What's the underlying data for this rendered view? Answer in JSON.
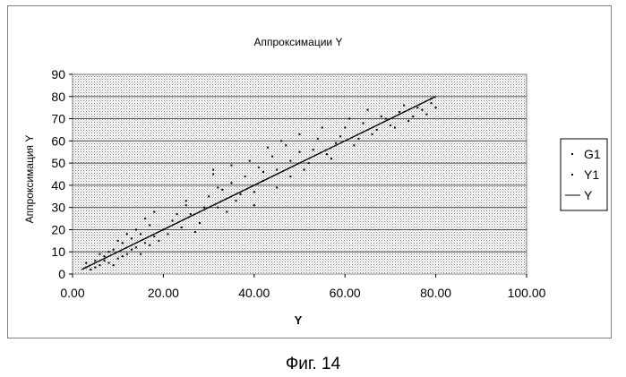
{
  "figure_caption": "Фиг. 14",
  "chart_data": {
    "type": "scatter",
    "title": "Аппроксимации Y",
    "xlabel": "Y",
    "ylabel": "Аппроксимация Y",
    "xlim": [
      0,
      100
    ],
    "ylim": [
      0,
      90
    ],
    "x_ticks": [
      "0.00",
      "20.00",
      "40.00",
      "60.00",
      "80.00",
      "100.00"
    ],
    "y_ticks": [
      "0",
      "10",
      "20",
      "30",
      "40",
      "50",
      "60",
      "70",
      "80",
      "90"
    ],
    "grid": true,
    "legend_position": "right",
    "series": [
      {
        "name": "G1",
        "kind": "points",
        "points": [
          [
            3,
            3
          ],
          [
            4,
            2
          ],
          [
            5,
            6
          ],
          [
            6,
            4
          ],
          [
            7,
            8
          ],
          [
            8,
            5
          ],
          [
            9,
            11
          ],
          [
            10,
            7
          ],
          [
            11,
            14
          ],
          [
            12,
            9
          ],
          [
            13,
            16
          ],
          [
            14,
            12
          ],
          [
            15,
            18
          ],
          [
            16,
            14
          ],
          [
            17,
            22
          ],
          [
            18,
            17
          ],
          [
            20,
            20
          ],
          [
            22,
            24
          ],
          [
            24,
            21
          ],
          [
            25,
            31
          ],
          [
            26,
            27
          ],
          [
            28,
            23
          ],
          [
            30,
            35
          ],
          [
            31,
            45
          ],
          [
            32,
            30
          ],
          [
            33,
            38
          ],
          [
            35,
            41
          ],
          [
            36,
            33
          ],
          [
            38,
            44
          ],
          [
            40,
            37
          ],
          [
            41,
            48
          ],
          [
            42,
            42
          ],
          [
            44,
            53
          ],
          [
            45,
            47
          ],
          [
            47,
            58
          ],
          [
            48,
            44
          ],
          [
            50,
            55
          ],
          [
            52,
            50
          ],
          [
            54,
            61
          ],
          [
            56,
            54
          ],
          [
            58,
            59
          ],
          [
            60,
            66
          ],
          [
            62,
            58
          ],
          [
            64,
            68
          ],
          [
            66,
            63
          ],
          [
            68,
            71
          ],
          [
            70,
            67
          ],
          [
            72,
            73
          ],
          [
            74,
            69
          ],
          [
            76,
            75
          ],
          [
            78,
            72
          ],
          [
            79,
            77
          ]
        ]
      },
      {
        "name": "Y1",
        "kind": "points",
        "points": [
          [
            3,
            5
          ],
          [
            5,
            3
          ],
          [
            6,
            9
          ],
          [
            7,
            6
          ],
          [
            8,
            10
          ],
          [
            9,
            4
          ],
          [
            10,
            15
          ],
          [
            11,
            8
          ],
          [
            12,
            18
          ],
          [
            13,
            11
          ],
          [
            14,
            20
          ],
          [
            15,
            9
          ],
          [
            16,
            25
          ],
          [
            17,
            13
          ],
          [
            18,
            28
          ],
          [
            19,
            15
          ],
          [
            21,
            18
          ],
          [
            23,
            27
          ],
          [
            25,
            33
          ],
          [
            27,
            19
          ],
          [
            29,
            30
          ],
          [
            31,
            47
          ],
          [
            32,
            39
          ],
          [
            34,
            28
          ],
          [
            35,
            49
          ],
          [
            37,
            36
          ],
          [
            39,
            51
          ],
          [
            40,
            31
          ],
          [
            42,
            46
          ],
          [
            43,
            57
          ],
          [
            45,
            39
          ],
          [
            46,
            60
          ],
          [
            48,
            51
          ],
          [
            50,
            63
          ],
          [
            51,
            47
          ],
          [
            53,
            56
          ],
          [
            55,
            66
          ],
          [
            57,
            52
          ],
          [
            59,
            62
          ],
          [
            61,
            70
          ],
          [
            63,
            61
          ],
          [
            65,
            74
          ],
          [
            67,
            65
          ],
          [
            69,
            70
          ],
          [
            71,
            66
          ],
          [
            73,
            76
          ],
          [
            75,
            71
          ],
          [
            77,
            74
          ],
          [
            79,
            79
          ],
          [
            80,
            75
          ]
        ]
      },
      {
        "name": "Y",
        "kind": "line",
        "points": [
          [
            2,
            2
          ],
          [
            80,
            80
          ]
        ]
      }
    ]
  }
}
